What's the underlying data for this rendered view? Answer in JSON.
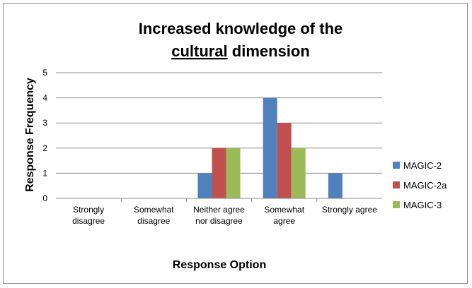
{
  "chart_data": {
    "type": "bar",
    "title_line1": "Increased knowledge of the",
    "title_line2_underlined": "cultural",
    "title_line2_rest": " dimension",
    "xlabel": "Response Option",
    "ylabel": "Response Frequency",
    "ylim": [
      0,
      5
    ],
    "yticks": [
      "0",
      "1",
      "2",
      "3",
      "4",
      "5"
    ],
    "grid": true,
    "legend_position": "right",
    "categories": [
      [
        "Strongly",
        "disagree"
      ],
      [
        "Somewhat",
        "disagree"
      ],
      [
        "Neither agree",
        "nor disagree"
      ],
      [
        "Somewhat",
        "agree"
      ],
      [
        "Strongly agree"
      ]
    ],
    "series": [
      {
        "name": "MAGIC-2",
        "color": "#4f81bd",
        "values": [
          0,
          0,
          1,
          4,
          1
        ]
      },
      {
        "name": "MAGIC-2a",
        "color": "#c0504d",
        "values": [
          0,
          0,
          2,
          3,
          0
        ]
      },
      {
        "name": "MAGIC-3",
        "color": "#9bbb59",
        "values": [
          0,
          0,
          2,
          2,
          0
        ]
      }
    ]
  }
}
